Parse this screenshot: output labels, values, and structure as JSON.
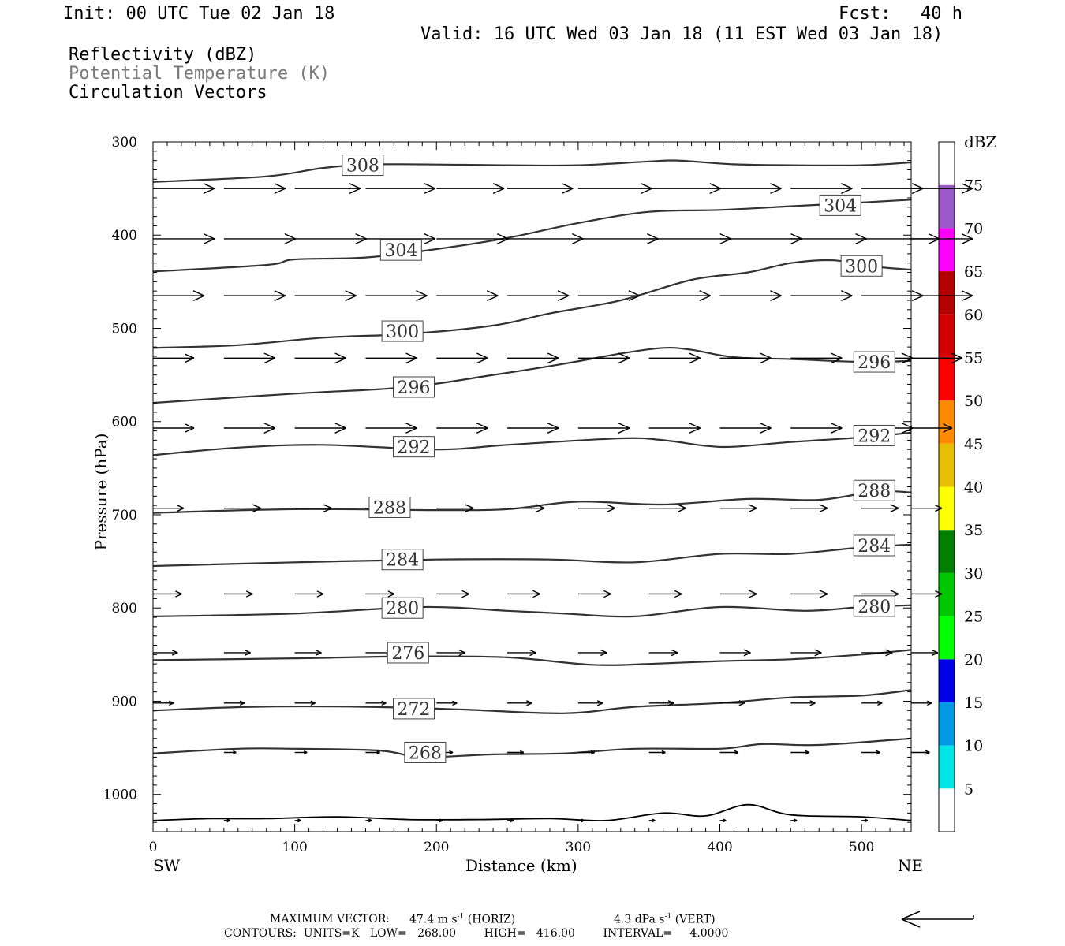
{
  "header": {
    "init": "Init: 00 UTC Tue 02 Jan 18",
    "fcst_label": "Fcst:",
    "fcst_value": "40 h",
    "valid": "Valid: 16 UTC Wed 03 Jan 18 (11 EST Wed 03 Jan 18)",
    "fields": [
      "Reflectivity (dBZ)",
      "Potential Temperature (K)",
      "Circulation Vectors"
    ]
  },
  "footer": {
    "max_vector_label": "MAXIMUM VECTOR:",
    "max_vector_horiz": "47.4 m s",
    "horiz_exp": "-1",
    "horiz_tag": "(HORIZ)",
    "max_vector_vert": "4.3 dPa s",
    "vert_exp": "-1",
    "vert_tag": "(VERT)",
    "contours": "CONTOURS:  UNITS=K   LOW=   268.00        HIGH=   416.00        INTERVAL=     4.0000"
  },
  "chart_data": {
    "type": "line",
    "xlabel": "Distance (km)",
    "ylabel": "Pressure (hPa)",
    "x_start_label": "SW",
    "x_end_label": "NE",
    "xlim": [
      0,
      535
    ],
    "ylim": [
      300,
      1040
    ],
    "y_scale": "linear, inverted",
    "x_ticks": [
      0,
      100,
      200,
      300,
      400,
      500
    ],
    "y_ticks": [
      300,
      400,
      500,
      600,
      700,
      800,
      900,
      1000
    ],
    "colorbar": {
      "unit": "dBZ",
      "ticks": [
        5,
        10,
        15,
        20,
        25,
        30,
        35,
        40,
        45,
        50,
        55,
        60,
        65,
        70,
        75
      ],
      "colors": [
        "#ffffff",
        "#00e6e6",
        "#0099e6",
        "#0000e6",
        "#00ff00",
        "#00c800",
        "#008000",
        "#ffff00",
        "#e6c000",
        "#ff8c00",
        "#ff0000",
        "#d20000",
        "#b40000",
        "#ff00ff",
        "#9b59c8",
        "#ffffff"
      ]
    },
    "isentropes": [
      {
        "theta": 308,
        "label_at": [
          148,
          325
        ],
        "points": [
          [
            0,
            343
          ],
          [
            80,
            337
          ],
          [
            120,
            328
          ],
          [
            160,
            324
          ],
          [
            250,
            325
          ],
          [
            300,
            325
          ],
          [
            350,
            321
          ],
          [
            370,
            320
          ],
          [
            410,
            324
          ],
          [
            450,
            325
          ],
          [
            500,
            325
          ],
          [
            535,
            322
          ]
        ]
      },
      {
        "theta": 304,
        "label_at": [
          485,
          368
        ],
        "points": [
          [
            0,
            439
          ],
          [
            80,
            432
          ],
          [
            100,
            426
          ],
          [
            150,
            424
          ],
          [
            200,
            415
          ],
          [
            250,
            403
          ],
          [
            300,
            387
          ],
          [
            350,
            375
          ],
          [
            400,
            373
          ],
          [
            450,
            369
          ],
          [
            500,
            365
          ],
          [
            535,
            362
          ]
        ]
      },
      {
        "theta": 304,
        "label_at": [
          175,
          416
        ],
        "points": []
      },
      {
        "theta": 300,
        "label_at": [
          500,
          433
        ],
        "points": [
          [
            0,
            521
          ],
          [
            60,
            518
          ],
          [
            120,
            510
          ],
          [
            180,
            506
          ],
          [
            240,
            497
          ],
          [
            280,
            484
          ],
          [
            330,
            470
          ],
          [
            380,
            448
          ],
          [
            420,
            440
          ],
          [
            450,
            430
          ],
          [
            480,
            427
          ],
          [
            510,
            434
          ],
          [
            535,
            437
          ]
        ]
      },
      {
        "theta": 300,
        "label_at": [
          176,
          503
        ],
        "points": []
      },
      {
        "theta": 296,
        "label_at": [
          509,
          536
        ],
        "points": [
          [
            0,
            580
          ],
          [
            100,
            570
          ],
          [
            180,
            563
          ],
          [
            240,
            550
          ],
          [
            290,
            538
          ],
          [
            330,
            527
          ],
          [
            360,
            521
          ],
          [
            380,
            523
          ],
          [
            410,
            531
          ],
          [
            450,
            533
          ],
          [
            500,
            536
          ],
          [
            535,
            535
          ]
        ]
      },
      {
        "theta": 296,
        "label_at": [
          184,
          563
        ],
        "points": []
      },
      {
        "theta": 292,
        "label_at": [
          509,
          615
        ],
        "points": [
          [
            0,
            636
          ],
          [
            60,
            628
          ],
          [
            120,
            625
          ],
          [
            200,
            630
          ],
          [
            250,
            625
          ],
          [
            330,
            618
          ],
          [
            360,
            620
          ],
          [
            390,
            626
          ],
          [
            410,
            627
          ],
          [
            450,
            622
          ],
          [
            500,
            617
          ],
          [
            535,
            612
          ]
        ]
      },
      {
        "theta": 292,
        "label_at": [
          184,
          627
        ],
        "points": []
      },
      {
        "theta": 288,
        "label_at": [
          509,
          674
        ],
        "points": [
          [
            0,
            698
          ],
          [
            100,
            694
          ],
          [
            200,
            695
          ],
          [
            250,
            694
          ],
          [
            300,
            686
          ],
          [
            360,
            689
          ],
          [
            420,
            683
          ],
          [
            470,
            684
          ],
          [
            510,
            675
          ],
          [
            535,
            676
          ]
        ]
      },
      {
        "theta": 288,
        "label_at": [
          167,
          692
        ],
        "points": []
      },
      {
        "theta": 284,
        "label_at": [
          509,
          733
        ],
        "points": [
          [
            0,
            755
          ],
          [
            100,
            751
          ],
          [
            200,
            748
          ],
          [
            280,
            748
          ],
          [
            340,
            751
          ],
          [
            400,
            742
          ],
          [
            450,
            742
          ],
          [
            500,
            735
          ],
          [
            535,
            732
          ]
        ]
      },
      {
        "theta": 284,
        "label_at": [
          176,
          748
        ],
        "points": []
      },
      {
        "theta": 280,
        "label_at": [
          509,
          798
        ],
        "points": [
          [
            0,
            809
          ],
          [
            100,
            806
          ],
          [
            190,
            799
          ],
          [
            250,
            803
          ],
          [
            290,
            806
          ],
          [
            340,
            809
          ],
          [
            400,
            799
          ],
          [
            460,
            803
          ],
          [
            500,
            799
          ],
          [
            535,
            797
          ]
        ]
      },
      {
        "theta": 280,
        "label_at": [
          176,
          800
        ],
        "points": []
      },
      {
        "theta": 276,
        "label_at": [
          180,
          848
        ],
        "points": [
          [
            0,
            856
          ],
          [
            100,
            854
          ],
          [
            180,
            852
          ],
          [
            250,
            853
          ],
          [
            310,
            861
          ],
          [
            350,
            860
          ],
          [
            400,
            857
          ],
          [
            450,
            855
          ],
          [
            500,
            850
          ],
          [
            535,
            845
          ]
        ]
      },
      {
        "theta": 272,
        "label_at": [
          184,
          908
        ],
        "points": [
          [
            0,
            910
          ],
          [
            70,
            906
          ],
          [
            150,
            906
          ],
          [
            220,
            909
          ],
          [
            290,
            913
          ],
          [
            340,
            906
          ],
          [
            400,
            902
          ],
          [
            450,
            896
          ],
          [
            500,
            894
          ],
          [
            535,
            888
          ]
        ]
      },
      {
        "theta": 268,
        "label_at": [
          192,
          955
        ],
        "points": [
          [
            0,
            956
          ],
          [
            60,
            951
          ],
          [
            100,
            951
          ],
          [
            160,
            953
          ],
          [
            190,
            960
          ],
          [
            240,
            957
          ],
          [
            290,
            956
          ],
          [
            340,
            951
          ],
          [
            400,
            951
          ],
          [
            430,
            946
          ],
          [
            470,
            947
          ],
          [
            535,
            940
          ]
        ]
      }
    ],
    "vectors": [
      {
        "p": 350,
        "items": [
          [
            0,
            3.0
          ],
          [
            50,
            3.0
          ],
          [
            100,
            3.2
          ],
          [
            150,
            3.4
          ],
          [
            200,
            3.3
          ],
          [
            250,
            3.2
          ],
          [
            300,
            3.6
          ],
          [
            350,
            3.5
          ],
          [
            400,
            3.0
          ],
          [
            450,
            3.0
          ],
          [
            500,
            3.0
          ],
          [
            535,
            3.0
          ]
        ]
      },
      {
        "p": 404,
        "items": [
          [
            0,
            3.0
          ],
          [
            50,
            3.5
          ],
          [
            100,
            3.5
          ],
          [
            150,
            3.4
          ],
          [
            200,
            3.5
          ],
          [
            250,
            3.7
          ],
          [
            300,
            3.9
          ],
          [
            350,
            4.0
          ],
          [
            400,
            4.0
          ],
          [
            450,
            3.7
          ],
          [
            500,
            3.8
          ],
          [
            535,
            3.0
          ]
        ]
      },
      {
        "p": 465,
        "items": [
          [
            0,
            2.5
          ],
          [
            50,
            3.0
          ],
          [
            100,
            3.0
          ],
          [
            150,
            3.0
          ],
          [
            200,
            3.0
          ],
          [
            250,
            3.0
          ],
          [
            300,
            3.0
          ],
          [
            350,
            3.0
          ],
          [
            400,
            3.0
          ],
          [
            450,
            3.0
          ],
          [
            500,
            3.0
          ],
          [
            535,
            3.0
          ]
        ]
      },
      {
        "p": 532,
        "items": [
          [
            0,
            2.0
          ],
          [
            50,
            2.5
          ],
          [
            100,
            2.5
          ],
          [
            150,
            2.5
          ],
          [
            200,
            2.5
          ],
          [
            250,
            2.5
          ],
          [
            300,
            2.5
          ],
          [
            350,
            2.5
          ],
          [
            400,
            2.5
          ],
          [
            450,
            2.5
          ],
          [
            500,
            2.5
          ],
          [
            535,
            2.5
          ]
        ]
      },
      {
        "p": 607,
        "items": [
          [
            0,
            2.0
          ],
          [
            50,
            2.5
          ],
          [
            100,
            2.5
          ],
          [
            150,
            2.5
          ],
          [
            200,
            2.5
          ],
          [
            250,
            2.5
          ],
          [
            300,
            2.5
          ],
          [
            350,
            2.5
          ],
          [
            400,
            2.5
          ],
          [
            450,
            2.5
          ],
          [
            500,
            2.5
          ],
          [
            535,
            2.0
          ]
        ]
      },
      {
        "p": 693,
        "items": [
          [
            0,
            1.5
          ],
          [
            50,
            1.8
          ],
          [
            100,
            1.8
          ],
          [
            150,
            1.8
          ],
          [
            200,
            1.8
          ],
          [
            250,
            1.8
          ],
          [
            300,
            1.8
          ],
          [
            350,
            1.8
          ],
          [
            400,
            1.8
          ],
          [
            450,
            1.8
          ],
          [
            500,
            1.8
          ],
          [
            535,
            1.5
          ]
        ]
      },
      {
        "p": 785,
        "items": [
          [
            0,
            1.4
          ],
          [
            50,
            1.4
          ],
          [
            100,
            1.4
          ],
          [
            150,
            1.4
          ],
          [
            200,
            1.6
          ],
          [
            250,
            1.6
          ],
          [
            300,
            1.6
          ],
          [
            350,
            1.6
          ],
          [
            400,
            1.8
          ],
          [
            450,
            1.8
          ],
          [
            500,
            1.8
          ],
          [
            535,
            1.5
          ]
        ]
      },
      {
        "p": 848,
        "items": [
          [
            0,
            1.2
          ],
          [
            50,
            1.3
          ],
          [
            100,
            1.3
          ],
          [
            150,
            1.3
          ],
          [
            200,
            1.4
          ],
          [
            250,
            1.4
          ],
          [
            300,
            1.4
          ],
          [
            350,
            1.4
          ],
          [
            400,
            1.5
          ],
          [
            450,
            1.5
          ],
          [
            500,
            1.5
          ],
          [
            535,
            1.3
          ]
        ]
      },
      {
        "p": 902,
        "items": [
          [
            0,
            1.0
          ],
          [
            50,
            1.0
          ],
          [
            100,
            1.0
          ],
          [
            150,
            1.0
          ],
          [
            200,
            1.0
          ],
          [
            250,
            1.2
          ],
          [
            300,
            1.2
          ],
          [
            350,
            1.2
          ],
          [
            400,
            1.2
          ],
          [
            450,
            1.2
          ],
          [
            500,
            1.0
          ],
          [
            535,
            1.0
          ]
        ]
      },
      {
        "p": 955,
        "items": [
          [
            50,
            0.6
          ],
          [
            100,
            0.6
          ],
          [
            150,
            0.7
          ],
          [
            200,
            0.8
          ],
          [
            250,
            0.8
          ],
          [
            300,
            0.8
          ],
          [
            350,
            0.8
          ],
          [
            400,
            0.9
          ],
          [
            450,
            0.9
          ],
          [
            500,
            0.9
          ],
          [
            535,
            0.9
          ]
        ]
      },
      {
        "p": 1028,
        "items": [
          [
            50,
            0.3
          ],
          [
            100,
            0.3
          ],
          [
            150,
            0.3
          ],
          [
            200,
            0.3
          ],
          [
            250,
            0.3
          ],
          [
            300,
            0.3
          ],
          [
            350,
            0.3
          ],
          [
            400,
            0.3
          ],
          [
            450,
            0.3
          ],
          [
            500,
            0.3
          ]
        ]
      }
    ]
  }
}
